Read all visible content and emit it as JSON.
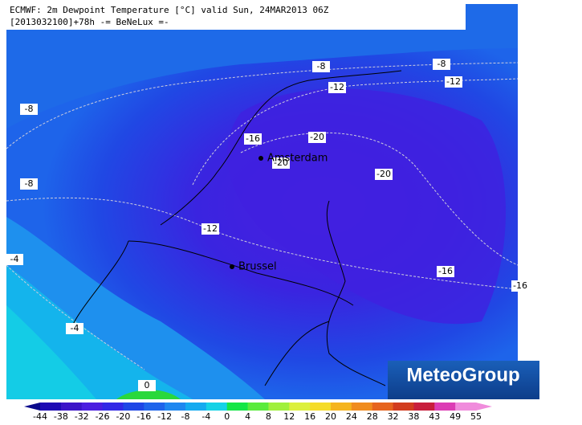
{
  "header": {
    "line1": "ECMWF: 2m Dewpoint Temperature [°C] valid Sun, 24MAR2013 06Z",
    "line2": "[2013032100]+78h -= BeNeLux =-"
  },
  "contour_labels": [
    -8,
    -12,
    -8,
    -12,
    -8,
    -8,
    -16,
    -20,
    -20,
    -20,
    -12,
    -4,
    -4,
    -16,
    -16,
    0
  ],
  "cities": [
    "Amsterdam",
    "Brussel"
  ],
  "logo": "MeteoGroup",
  "colorbar": {
    "labels": [
      -44,
      -38,
      -32,
      -26,
      -20,
      -16,
      -12,
      -8,
      -4,
      0,
      4,
      8,
      12,
      16,
      20,
      24,
      28,
      32,
      38,
      43,
      49,
      55
    ],
    "colors": [
      "#0a0a8c",
      "#1e0ab4",
      "#3c14c8",
      "#4b1ee0",
      "#3228e6",
      "#1e46e6",
      "#1e64eb",
      "#1e87f0",
      "#14aaf0",
      "#14d2e6",
      "#14e646",
      "#5aeb3c",
      "#a0f03c",
      "#dcf03c",
      "#f5dc28",
      "#f5b41e",
      "#f08c1e",
      "#e6641e",
      "#d23c1e",
      "#c81e3c",
      "#dc3cb4",
      "#f08cdc"
    ]
  }
}
